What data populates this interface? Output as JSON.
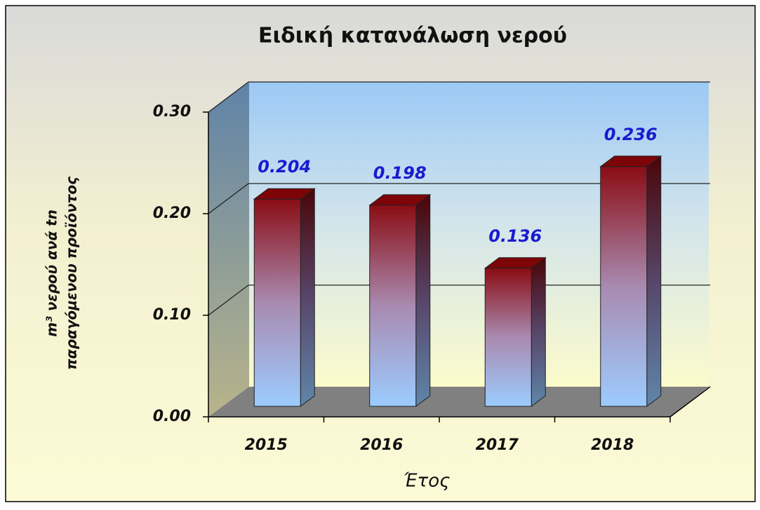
{
  "chart_data": {
    "type": "bar3d",
    "title": "Ειδική κατανάλωση νερού",
    "y_label": [
      "m³ νερού ανά tn",
      "παραγόμενου προϊόντος"
    ],
    "x_label": "Έτος",
    "categories": [
      "2015",
      "2016",
      "2017",
      "2018"
    ],
    "values": [
      0.204,
      0.198,
      0.136,
      0.236
    ],
    "ylim": [
      0,
      0.3
    ],
    "yticks": [
      {
        "value": 0,
        "label": "0.00"
      },
      {
        "value": 0.1,
        "label": "0.10"
      },
      {
        "value": 0.2,
        "label": "0.20"
      },
      {
        "value": 0.3,
        "label": "0.30"
      }
    ],
    "grid": true,
    "label_color": "#1a1ad0"
  }
}
